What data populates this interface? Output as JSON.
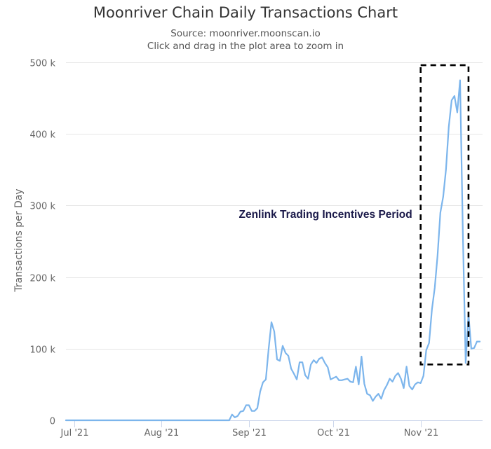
{
  "chart_data": {
    "type": "line",
    "title": "Moonriver Chain Daily Transactions Chart",
    "subtitle": "Source: moonriver.moonscan.io",
    "subtitle2": "Click and drag in the plot area to zoom in",
    "xlabel": "",
    "ylabel": "Transactions per Day",
    "x_start": "2021-06-28",
    "x_end": "2021-11-23",
    "ylim": [
      0,
      500000
    ],
    "y_ticks": [
      {
        "value": 0,
        "label": "0"
      },
      {
        "value": 100000,
        "label": "100 k"
      },
      {
        "value": 200000,
        "label": "200 k"
      },
      {
        "value": 300000,
        "label": "300 k"
      },
      {
        "value": 400000,
        "label": "400 k"
      },
      {
        "value": 500000,
        "label": "500 k"
      }
    ],
    "x_ticks": [
      {
        "date": "2021-07-01",
        "label": "Jul '21"
      },
      {
        "date": "2021-08-01",
        "label": "Aug '21"
      },
      {
        "date": "2021-09-01",
        "label": "Sep '21"
      },
      {
        "date": "2021-10-01",
        "label": "Oct '21"
      },
      {
        "date": "2021-11-01",
        "label": "Nov '21"
      }
    ],
    "grid": true,
    "legend": "none",
    "line_color": "#7cb5ec",
    "annotation": {
      "text": "Zenlink Trading Incentives Period",
      "x_start": "2021-11-01",
      "x_end": "2021-11-18",
      "y_min": 78000,
      "y_max": 496000,
      "color": "#1b1a4a"
    },
    "series": [
      {
        "x": [
          "2021-06-28",
          "2021-07-02",
          "2021-07-09",
          "2021-07-16",
          "2021-07-23",
          "2021-07-30",
          "2021-08-06",
          "2021-08-13",
          "2021-08-20",
          "2021-08-25",
          "2021-08-26",
          "2021-08-27",
          "2021-08-28",
          "2021-08-29",
          "2021-08-30",
          "2021-08-31",
          "2021-09-01",
          "2021-09-02",
          "2021-09-03",
          "2021-09-04",
          "2021-09-05",
          "2021-09-06",
          "2021-09-07",
          "2021-09-08",
          "2021-09-09",
          "2021-09-10",
          "2021-09-11",
          "2021-09-12",
          "2021-09-13",
          "2021-09-14",
          "2021-09-15",
          "2021-09-16",
          "2021-09-17",
          "2021-09-18",
          "2021-09-19",
          "2021-09-20",
          "2021-09-21",
          "2021-09-22",
          "2021-09-23",
          "2021-09-24",
          "2021-09-25",
          "2021-09-26",
          "2021-09-27",
          "2021-09-28",
          "2021-09-29",
          "2021-09-30",
          "2021-10-01",
          "2021-10-02",
          "2021-10-03",
          "2021-10-04",
          "2021-10-05",
          "2021-10-06",
          "2021-10-07",
          "2021-10-08",
          "2021-10-09",
          "2021-10-10",
          "2021-10-11",
          "2021-10-12",
          "2021-10-13",
          "2021-10-14",
          "2021-10-15",
          "2021-10-16",
          "2021-10-17",
          "2021-10-18",
          "2021-10-19",
          "2021-10-20",
          "2021-10-21",
          "2021-10-22",
          "2021-10-23",
          "2021-10-24",
          "2021-10-25",
          "2021-10-26",
          "2021-10-27",
          "2021-10-28",
          "2021-10-29",
          "2021-10-30",
          "2021-10-31",
          "2021-11-01",
          "2021-11-02",
          "2021-11-03",
          "2021-11-04",
          "2021-11-05",
          "2021-11-06",
          "2021-11-07",
          "2021-11-08",
          "2021-11-09",
          "2021-11-10",
          "2021-11-11",
          "2021-11-12",
          "2021-11-13",
          "2021-11-14",
          "2021-11-15",
          "2021-11-16",
          "2021-11-17",
          "2021-11-18",
          "2021-11-19",
          "2021-11-20",
          "2021-11-21",
          "2021-11-22"
        ],
        "values": [
          0,
          0,
          0,
          0,
          0,
          0,
          0,
          0,
          0,
          0,
          8000,
          4000,
          6000,
          12000,
          13000,
          21000,
          21000,
          13000,
          13000,
          17000,
          40000,
          53000,
          57000,
          100000,
          137000,
          124000,
          85000,
          83000,
          104000,
          94000,
          90000,
          72000,
          65000,
          57000,
          81000,
          81000,
          63000,
          58000,
          78000,
          84000,
          80000,
          86000,
          88000,
          80000,
          74000,
          57000,
          59000,
          61000,
          56000,
          56000,
          57000,
          58000,
          54000,
          53000,
          75000,
          50000,
          89000,
          51000,
          37000,
          35000,
          27000,
          33000,
          37000,
          30000,
          42000,
          49000,
          58000,
          54000,
          62000,
          66000,
          58000,
          45000,
          75000,
          48000,
          43000,
          50000,
          53000,
          52000,
          62000,
          98000,
          108000,
          155000,
          185000,
          230000,
          290000,
          312000,
          350000,
          410000,
          447000,
          453000,
          430000,
          475000,
          260000,
          80000,
          148000,
          100000,
          101000,
          110000,
          110000
        ]
      }
    ]
  }
}
